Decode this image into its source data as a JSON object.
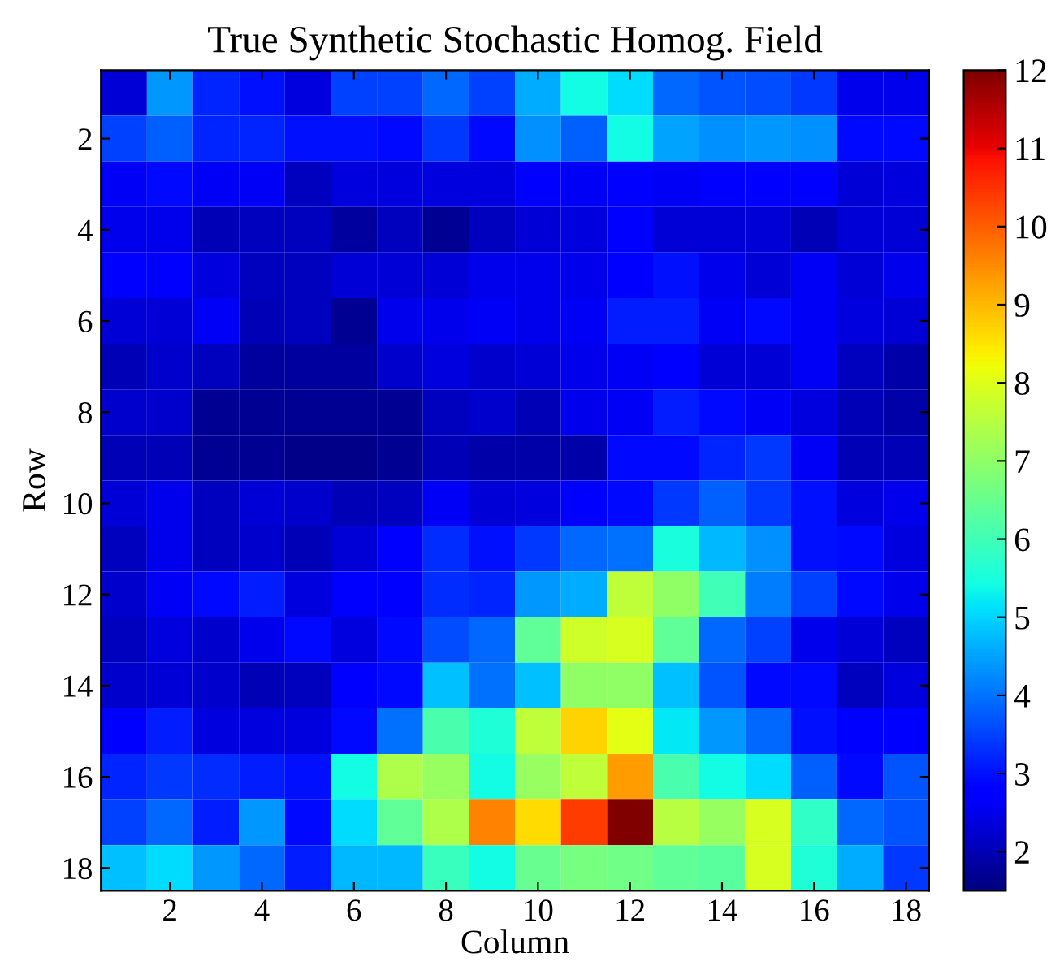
{
  "chart_data": {
    "type": "heatmap",
    "title": "True Synthetic Stochastic Homog. Field",
    "xlabel": "Column",
    "ylabel": "Row",
    "x": [
      1,
      2,
      3,
      4,
      5,
      6,
      7,
      8,
      9,
      10,
      11,
      12,
      13,
      14,
      15,
      16,
      17,
      18
    ],
    "y": [
      1,
      2,
      3,
      4,
      5,
      6,
      7,
      8,
      9,
      10,
      11,
      12,
      13,
      14,
      15,
      16,
      17,
      18
    ],
    "xlim": [
      0.5,
      18.5
    ],
    "xticks": [
      2,
      4,
      6,
      8,
      10,
      12,
      14,
      16,
      18
    ],
    "ylim": [
      18.5,
      0.5
    ],
    "yticks": [
      2,
      4,
      6,
      8,
      10,
      12,
      14,
      16,
      18
    ],
    "clim": [
      1.5,
      12
    ],
    "cticks": [
      2,
      3,
      4,
      5,
      6,
      7,
      8,
      9,
      10,
      11,
      12
    ],
    "cells": [
      [
        2.3,
        4.4,
        3.2,
        3.0,
        2.4,
        3.5,
        3.5,
        3.9,
        3.5,
        4.6,
        5.4,
        5.1,
        3.9,
        3.7,
        3.6,
        3.4,
        2.5,
        2.5
      ],
      [
        3.5,
        3.8,
        3.2,
        3.2,
        3.0,
        3.0,
        2.9,
        3.4,
        2.9,
        4.3,
        3.8,
        5.4,
        4.5,
        4.3,
        4.4,
        4.3,
        2.9,
        2.9
      ],
      [
        2.6,
        2.9,
        2.6,
        2.6,
        2.1,
        2.4,
        2.4,
        2.4,
        2.4,
        2.7,
        2.6,
        2.8,
        2.6,
        2.8,
        2.8,
        2.7,
        2.3,
        2.4
      ],
      [
        2.5,
        2.5,
        2.0,
        2.1,
        2.1,
        1.8,
        2.1,
        1.7,
        2.1,
        2.3,
        2.4,
        2.8,
        2.3,
        2.3,
        2.3,
        2.0,
        2.3,
        2.3
      ],
      [
        2.7,
        2.7,
        2.4,
        2.1,
        2.1,
        2.3,
        2.3,
        2.3,
        2.5,
        2.5,
        2.5,
        2.8,
        3.0,
        2.5,
        2.3,
        2.6,
        2.3,
        2.5
      ],
      [
        2.3,
        2.3,
        2.6,
        2.0,
        2.1,
        1.7,
        2.5,
        2.5,
        2.6,
        2.5,
        2.6,
        3.1,
        3.1,
        2.6,
        2.9,
        2.6,
        2.4,
        2.3
      ],
      [
        2.0,
        2.2,
        2.1,
        1.8,
        1.8,
        1.8,
        2.2,
        2.4,
        2.2,
        2.3,
        2.5,
        2.6,
        2.8,
        2.3,
        2.3,
        2.6,
        2.1,
        1.9
      ],
      [
        2.2,
        2.2,
        1.7,
        1.7,
        1.7,
        1.7,
        1.7,
        2.1,
        2.2,
        2.0,
        2.5,
        2.6,
        3.1,
        2.9,
        2.6,
        2.4,
        2.0,
        1.9
      ],
      [
        2.0,
        2.0,
        1.7,
        1.7,
        1.6,
        1.6,
        1.7,
        2.0,
        1.9,
        1.9,
        1.9,
        2.9,
        2.9,
        3.2,
        3.4,
        2.6,
        2.0,
        2.0
      ],
      [
        2.3,
        2.5,
        2.1,
        2.3,
        2.2,
        2.0,
        2.1,
        2.6,
        2.3,
        2.4,
        2.8,
        2.9,
        3.4,
        3.8,
        3.4,
        3.0,
        2.4,
        2.5
      ],
      [
        2.1,
        2.5,
        2.1,
        2.2,
        2.0,
        2.3,
        2.8,
        3.3,
        3.0,
        3.4,
        3.9,
        4.0,
        5.5,
        4.7,
        4.3,
        3.0,
        2.9,
        2.4
      ],
      [
        2.2,
        2.6,
        2.9,
        3.1,
        2.4,
        2.7,
        2.8,
        3.3,
        3.2,
        4.4,
        4.6,
        7.6,
        7.0,
        6.0,
        4.1,
        3.5,
        2.9,
        2.5
      ],
      [
        2.1,
        2.4,
        2.2,
        2.5,
        2.9,
        2.4,
        2.9,
        3.6,
        3.9,
        6.4,
        7.8,
        7.9,
        6.4,
        3.9,
        3.5,
        2.5,
        2.3,
        2.1
      ],
      [
        2.2,
        2.3,
        2.2,
        2.0,
        2.1,
        2.8,
        2.9,
        4.8,
        4.0,
        4.8,
        7.0,
        7.0,
        4.8,
        3.7,
        2.9,
        2.9,
        2.1,
        2.4
      ],
      [
        2.8,
        3.1,
        2.4,
        2.4,
        2.4,
        2.9,
        4.0,
        6.1,
        5.6,
        7.6,
        8.7,
        8.1,
        5.2,
        4.4,
        3.9,
        3.0,
        2.8,
        2.8
      ],
      [
        3.2,
        3.4,
        3.3,
        3.1,
        3.0,
        5.4,
        7.4,
        7.1,
        5.4,
        7.1,
        7.6,
        9.3,
        6.1,
        5.4,
        5.1,
        3.8,
        2.9,
        3.7
      ],
      [
        3.5,
        3.9,
        3.1,
        4.4,
        2.9,
        5.1,
        6.4,
        7.4,
        9.6,
        8.6,
        10.4,
        12.0,
        7.5,
        7.1,
        7.9,
        5.8,
        3.9,
        3.7
      ],
      [
        4.8,
        5.1,
        4.4,
        3.9,
        3.1,
        4.7,
        4.7,
        5.9,
        5.4,
        6.5,
        6.7,
        6.6,
        6.4,
        6.3,
        7.9,
        5.6,
        4.6,
        3.4
      ]
    ]
  }
}
